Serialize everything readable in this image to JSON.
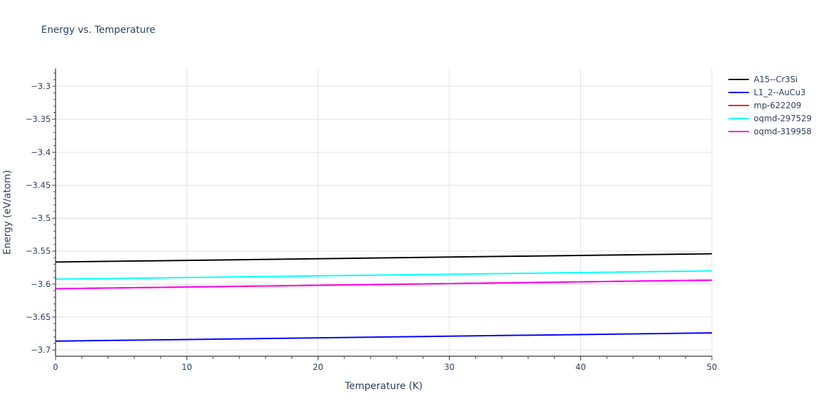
{
  "chart_data": {
    "type": "line",
    "title": "Energy vs. Temperature",
    "xlabel": "Temperature (K)",
    "ylabel": "Energy (eV/atom)",
    "xlim": [
      0,
      50
    ],
    "ylim": [
      -3.711,
      -3.273
    ],
    "x_ticks": [
      0,
      10,
      20,
      30,
      40,
      50
    ],
    "y_ticks": [
      -3.3,
      -3.35,
      -3.4,
      -3.45,
      -3.5,
      -3.55,
      -3.6,
      -3.65,
      -3.7
    ],
    "y_tick_labels": [
      "−3.3",
      "−3.35",
      "−3.4",
      "−3.45",
      "−3.5",
      "−3.55",
      "−3.6",
      "−3.65",
      "−3.7"
    ],
    "grid": true,
    "legend_position": "right",
    "x": [
      0,
      50
    ],
    "series": [
      {
        "name": "A15--Cr3Si",
        "color": "#000000",
        "values": [
          -3.5665,
          -3.554
        ]
      },
      {
        "name": "L1_2--AuCu3",
        "color": "#0000ff",
        "values": [
          -3.6865,
          -3.674
        ]
      },
      {
        "name": "mp-622209",
        "color": "#ff0000",
        "values": [
          -3.607,
          -3.594
        ]
      },
      {
        "name": "oqmd-297529",
        "color": "#00ffff",
        "values": [
          -3.5925,
          -3.58
        ]
      },
      {
        "name": "oqmd-319958",
        "color": "#ff00ff",
        "values": [
          -3.607,
          -3.594
        ]
      }
    ]
  }
}
